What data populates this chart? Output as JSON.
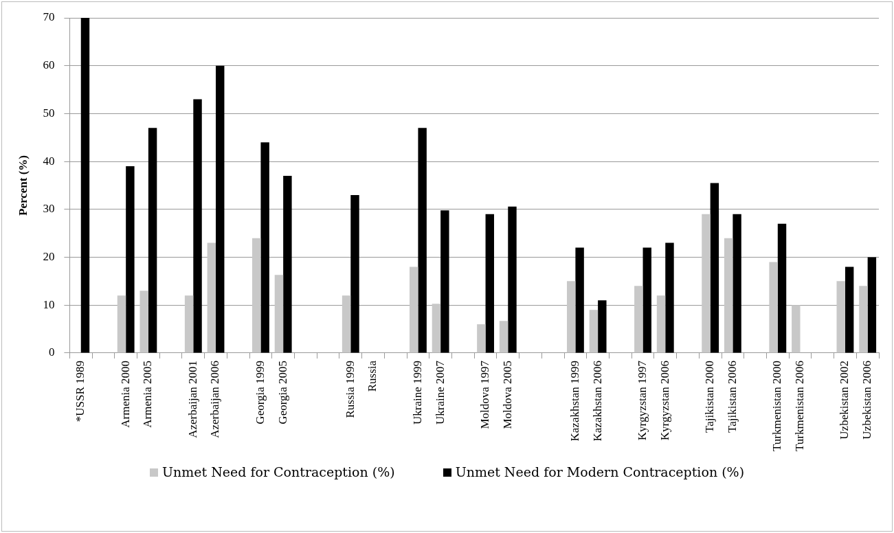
{
  "chart_data": {
    "type": "bar",
    "ylabel": "Percent (%)",
    "categories": [
      "*USSR 1989",
      null,
      "Armenia 2000",
      "Armenia 2005",
      null,
      "Azerbaijan 2001",
      "Azerbaijan 2006",
      null,
      "Georgia 1999",
      "Georgia 2005",
      null,
      null,
      "Russia 1999",
      "Russia",
      null,
      "Ukraine 1999",
      "Ukraine 2007",
      null,
      "Moldova 1997",
      "Moldova 2005",
      null,
      null,
      "Kazakhstan 1999",
      "Kazakhstan 2006",
      null,
      "Kyrgyzstan 1997",
      "Kyrgyzstan 2006",
      null,
      "Tajikistan 2000",
      "Tajikistan 2006",
      null,
      "Turkmenistan 2000",
      "Turkmenistan 2006",
      null,
      "Uzbekistan 2002",
      "Uzbekistan 2006"
    ],
    "series": [
      {
        "name": "Unmet Need for Contraception (%)",
        "color": "#c8c8c8",
        "values": [
          null,
          null,
          12,
          13,
          null,
          12,
          23,
          null,
          24,
          16.3,
          null,
          null,
          12,
          null,
          null,
          18,
          10.3,
          null,
          6,
          6.7,
          null,
          null,
          15,
          9,
          null,
          14,
          12,
          null,
          29,
          24,
          null,
          19,
          10,
          null,
          15,
          14
        ]
      },
      {
        "name": "Unmet Need for Modern Contraception (%)",
        "color": "#000000",
        "values": [
          70,
          null,
          39,
          47,
          null,
          53,
          60,
          null,
          44,
          37,
          null,
          null,
          33,
          null,
          null,
          47,
          29.8,
          null,
          29,
          30.6,
          null,
          null,
          22,
          11,
          null,
          22,
          23,
          null,
          35.5,
          29,
          null,
          27,
          null,
          null,
          18,
          20
        ]
      }
    ],
    "ylim": [
      0,
      70
    ],
    "yticks": [
      0,
      10,
      20,
      30,
      40,
      50,
      60,
      70
    ],
    "grid": "y",
    "legend": "bottom"
  }
}
